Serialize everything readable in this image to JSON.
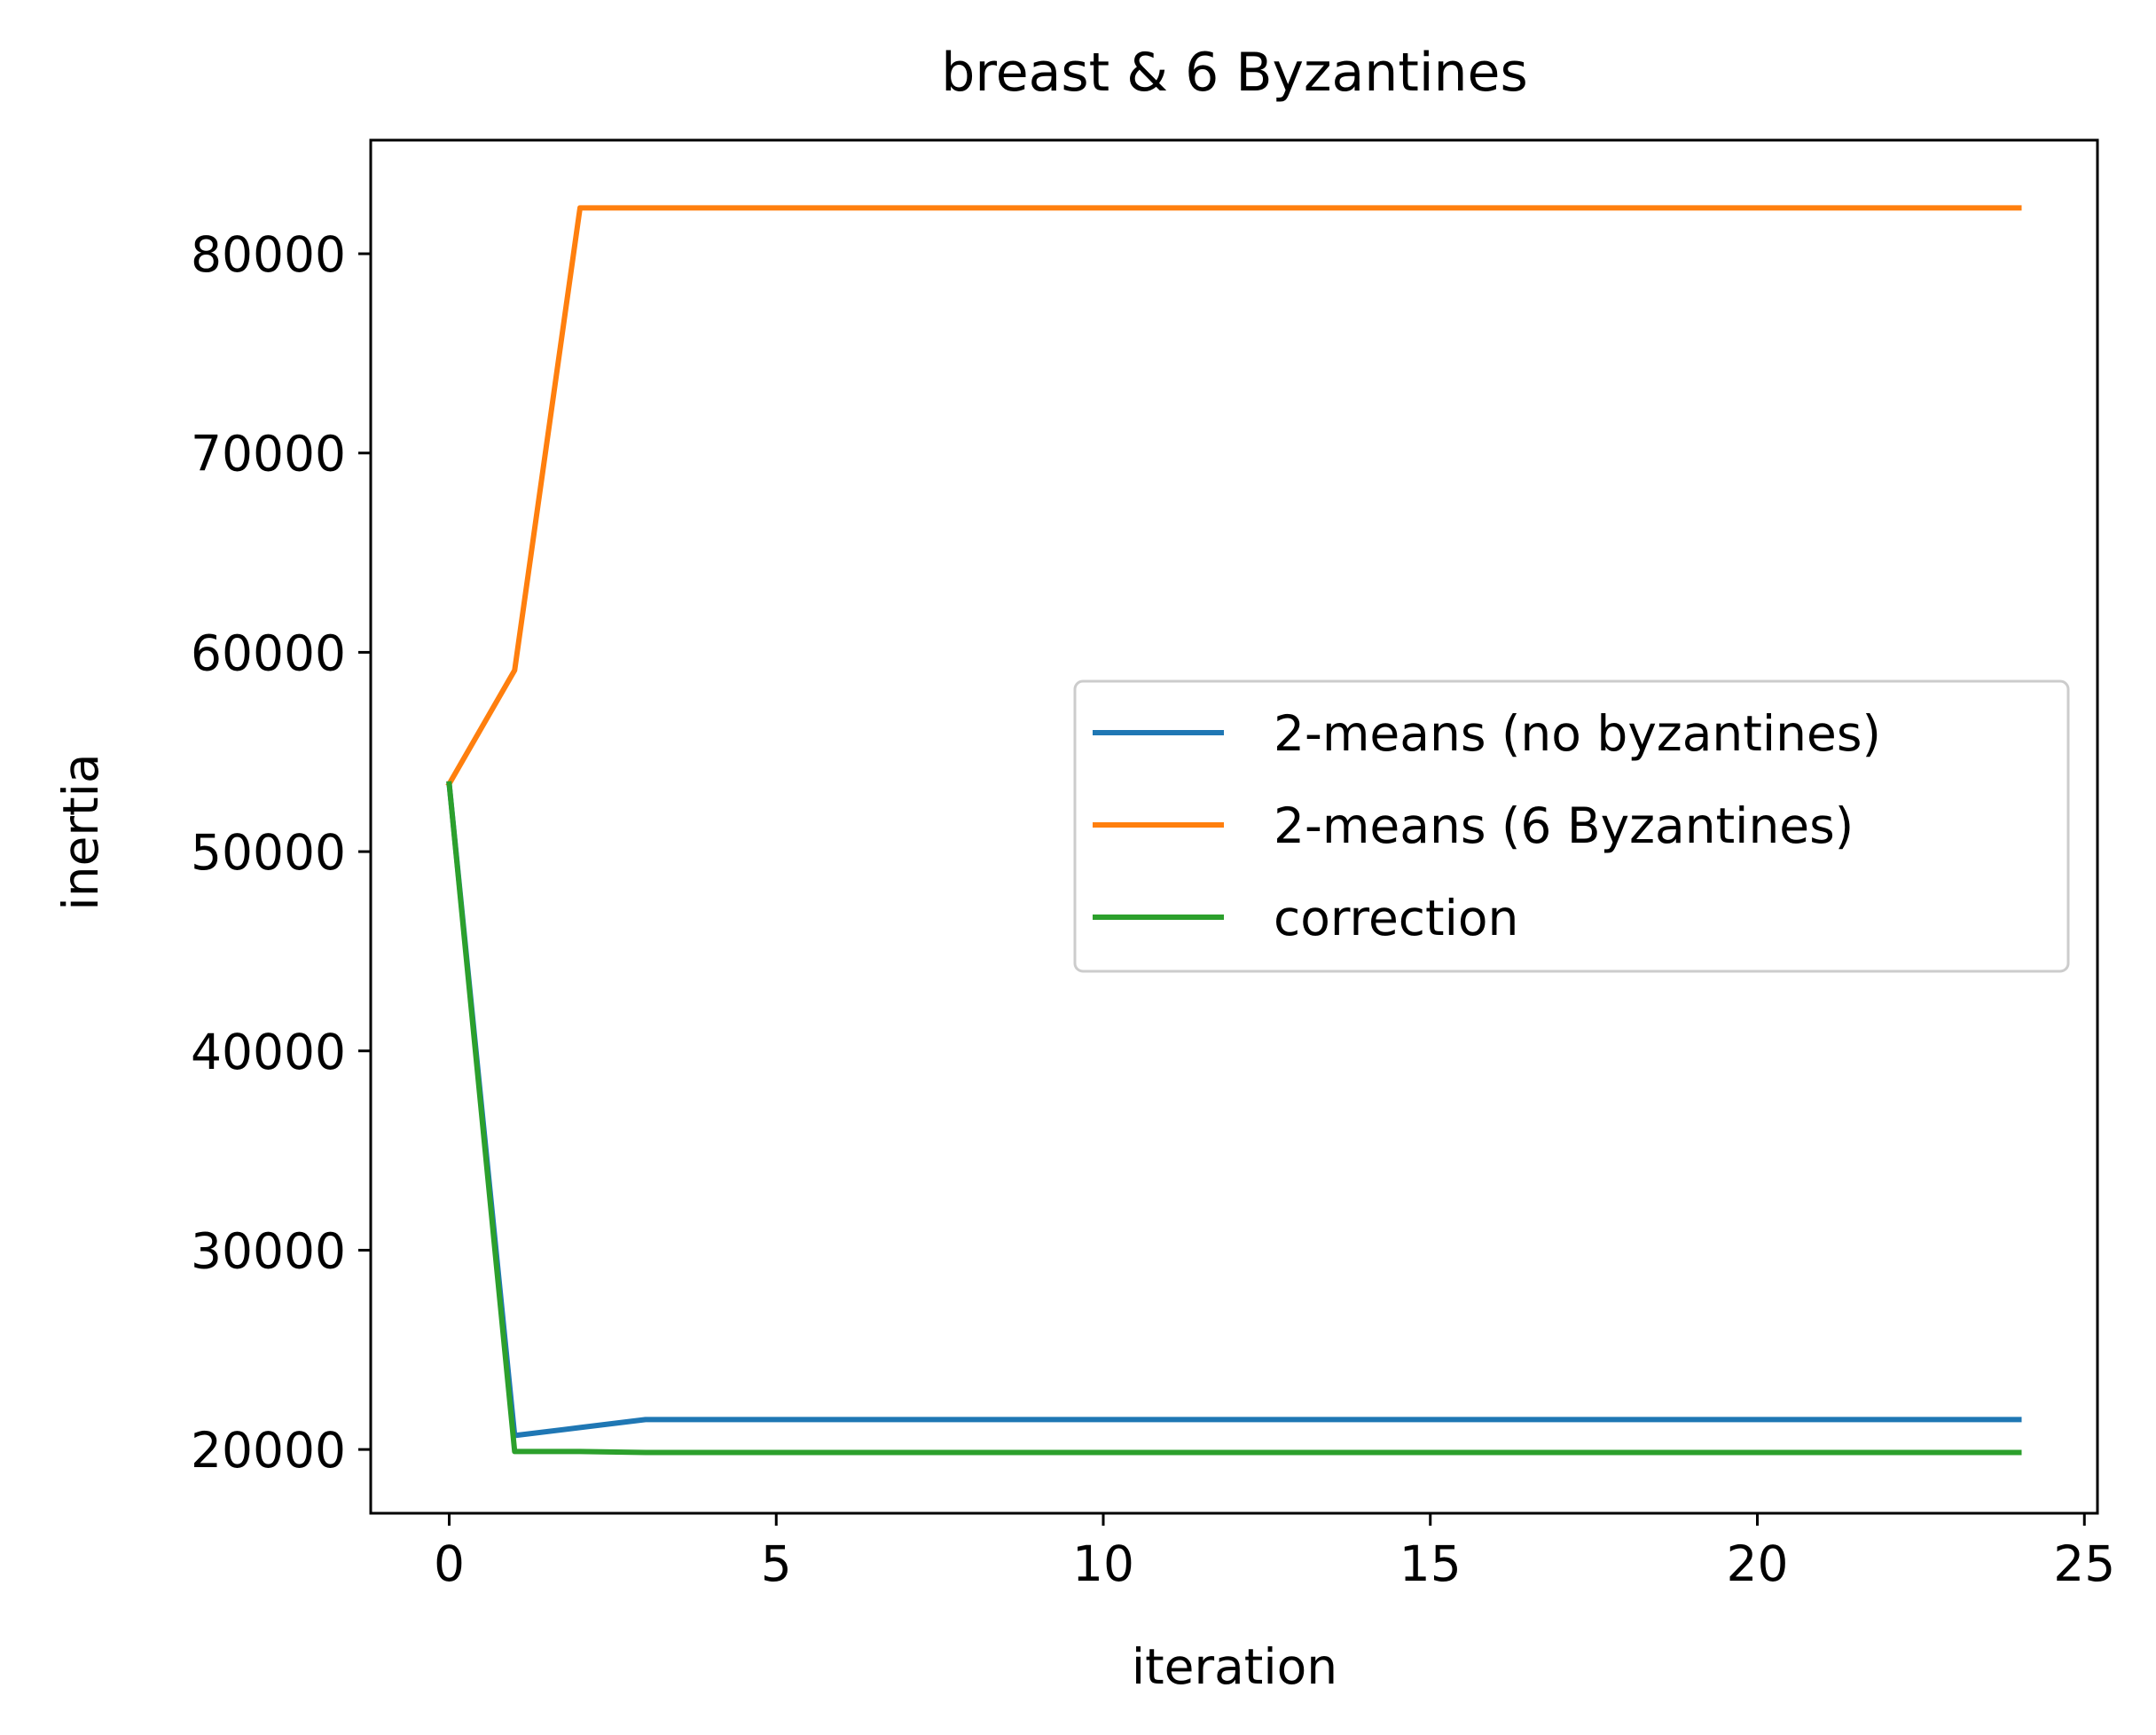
{
  "chart_data": {
    "type": "line",
    "title": "breast & 6 Byzantines",
    "xlabel": "iteration",
    "ylabel": "inertia",
    "xlim": [
      -1.2,
      25.2
    ],
    "ylim": [
      16800,
      85700
    ],
    "xticks": [
      0,
      5,
      10,
      15,
      20,
      25
    ],
    "yticks": [
      20000,
      30000,
      40000,
      50000,
      60000,
      70000,
      80000
    ],
    "grid": false,
    "legend_position": "center-right",
    "x": [
      0,
      1,
      2,
      3,
      4,
      5,
      6,
      7,
      8,
      9,
      10,
      11,
      12,
      13,
      14,
      15,
      16,
      17,
      18,
      19,
      20,
      21,
      22,
      23,
      24
    ],
    "series": [
      {
        "name": "2-means (no byzantines)",
        "color": "#1f77b4",
        "values": [
          53400,
          20700,
          21100,
          21500,
          21500,
          21500,
          21500,
          21500,
          21500,
          21500,
          21500,
          21500,
          21500,
          21500,
          21500,
          21500,
          21500,
          21500,
          21500,
          21500,
          21500,
          21500,
          21500,
          21500,
          21500
        ]
      },
      {
        "name": "2-means (6 Byzantines)",
        "color": "#ff7f0e",
        "values": [
          53400,
          59100,
          82300,
          82300,
          82300,
          82300,
          82300,
          82300,
          82300,
          82300,
          82300,
          82300,
          82300,
          82300,
          82300,
          82300,
          82300,
          82300,
          82300,
          82300,
          82300,
          82300,
          82300,
          82300,
          82300
        ]
      },
      {
        "name": "correction",
        "color": "#2ca02c",
        "values": [
          53400,
          19900,
          19900,
          19850,
          19850,
          19850,
          19850,
          19850,
          19850,
          19850,
          19850,
          19850,
          19850,
          19850,
          19850,
          19850,
          19850,
          19850,
          19850,
          19850,
          19850,
          19850,
          19850,
          19850,
          19850
        ]
      }
    ]
  }
}
